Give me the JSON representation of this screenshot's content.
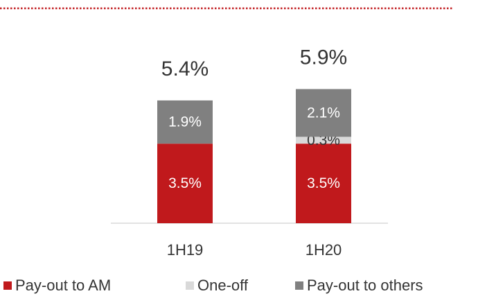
{
  "chart_data": {
    "type": "stacked_bar",
    "categories": [
      "1H19",
      "1H20"
    ],
    "series": [
      {
        "name": "Pay-out to AM",
        "color": "#c0191c",
        "values": [
          3.5,
          3.5
        ],
        "value_labels": [
          "3.5%",
          "3.5%"
        ]
      },
      {
        "name": "One-off",
        "color": "#d9d9d9",
        "values": [
          null,
          0.3
        ],
        "value_labels": [
          null,
          "0.3%"
        ]
      },
      {
        "name": "Pay-out to others",
        "color": "#808080",
        "values": [
          1.9,
          2.1
        ],
        "value_labels": [
          "1.9%",
          "2.1%"
        ]
      }
    ],
    "totals": {
      "values": [
        5.4,
        5.9
      ],
      "value_labels": [
        "5.4%",
        "5.9%"
      ]
    },
    "legend": "bottom"
  }
}
